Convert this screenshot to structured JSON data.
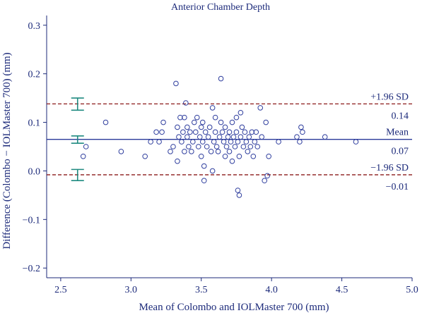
{
  "chart_data": {
    "type": "scatter",
    "title": "Anterior Chamber Depth",
    "xlabel": "Mean of Colombo and IOLMaster 700 (mm)",
    "ylabel": "Difference (Colombo − IOLMaster 700) (mm)",
    "xlim": [
      2.4,
      5.0
    ],
    "ylim": [
      -0.22,
      0.32
    ],
    "xticks": [
      "2.5",
      "3.0",
      "3.5",
      "4.0",
      "4.5",
      "5.0"
    ],
    "yticks": [
      "−0.2",
      "−0.1",
      "0.0",
      "0.1",
      "0.2",
      "0.3"
    ],
    "xtick_values": [
      2.5,
      3.0,
      3.5,
      4.0,
      4.5,
      5.0
    ],
    "ytick_values": [
      -0.2,
      -0.1,
      0.0,
      0.1,
      0.2,
      0.3
    ],
    "grid": false,
    "colors": {
      "axis": "#1c2a7a",
      "points": "#2f3e9e",
      "mean_line": "#2a3a9a",
      "limit_lines": "#8b1a1a",
      "ci_bars": "#1f8a80"
    },
    "lines": {
      "upper_loa": {
        "label": "+1.96 SD",
        "value_text": "0.14",
        "value": 0.138
      },
      "mean": {
        "label": "Mean",
        "value_text": "0.07",
        "value": 0.065
      },
      "lower_loa": {
        "label": "−1.96 SD",
        "value_text": "−0.01",
        "value": -0.008
      }
    },
    "ci_bars": [
      {
        "center": 0.138,
        "low": 0.125,
        "high": 0.15
      },
      {
        "center": 0.065,
        "low": 0.057,
        "high": 0.072
      },
      {
        "center": -0.008,
        "low": -0.02,
        "high": 0.003
      }
    ],
    "points": [
      [
        2.66,
        0.03
      ],
      [
        2.68,
        0.05
      ],
      [
        2.82,
        0.1
      ],
      [
        2.93,
        0.04
      ],
      [
        3.1,
        0.03
      ],
      [
        3.14,
        0.06
      ],
      [
        3.18,
        0.08
      ],
      [
        3.2,
        0.06
      ],
      [
        3.22,
        0.08
      ],
      [
        3.23,
        0.1
      ],
      [
        3.28,
        0.04
      ],
      [
        3.3,
        0.05
      ],
      [
        3.32,
        0.18
      ],
      [
        3.33,
        0.09
      ],
      [
        3.33,
        0.02
      ],
      [
        3.34,
        0.07
      ],
      [
        3.35,
        0.11
      ],
      [
        3.36,
        0.06
      ],
      [
        3.37,
        0.08
      ],
      [
        3.38,
        0.04
      ],
      [
        3.38,
        0.11
      ],
      [
        3.39,
        0.14
      ],
      [
        3.4,
        0.07
      ],
      [
        3.4,
        0.09
      ],
      [
        3.41,
        0.05
      ],
      [
        3.42,
        0.08
      ],
      [
        3.43,
        0.04
      ],
      [
        3.44,
        0.06
      ],
      [
        3.45,
        0.1
      ],
      [
        3.46,
        0.08
      ],
      [
        3.47,
        0.11
      ],
      [
        3.48,
        0.05
      ],
      [
        3.49,
        0.07
      ],
      [
        3.5,
        0.09
      ],
      [
        3.5,
        0.03
      ],
      [
        3.51,
        0.1
      ],
      [
        3.51,
        0.06
      ],
      [
        3.52,
        -0.02
      ],
      [
        3.52,
        0.01
      ],
      [
        3.53,
        0.08
      ],
      [
        3.54,
        0.05
      ],
      [
        3.55,
        0.07
      ],
      [
        3.56,
        0.09
      ],
      [
        3.57,
        0.04
      ],
      [
        3.58,
        0.13
      ],
      [
        3.58,
        0.0
      ],
      [
        3.59,
        0.06
      ],
      [
        3.6,
        0.08
      ],
      [
        3.6,
        0.11
      ],
      [
        3.61,
        0.05
      ],
      [
        3.62,
        0.04
      ],
      [
        3.63,
        0.07
      ],
      [
        3.64,
        0.19
      ],
      [
        3.64,
        0.1
      ],
      [
        3.65,
        0.08
      ],
      [
        3.66,
        0.06
      ],
      [
        3.67,
        0.03
      ],
      [
        3.67,
        0.09
      ],
      [
        3.68,
        0.05
      ],
      [
        3.69,
        0.07
      ],
      [
        3.7,
        0.04
      ],
      [
        3.7,
        0.08
      ],
      [
        3.71,
        0.06
      ],
      [
        3.72,
        0.02
      ],
      [
        3.72,
        0.1
      ],
      [
        3.73,
        0.07
      ],
      [
        3.74,
        0.05
      ],
      [
        3.75,
        0.08
      ],
      [
        3.75,
        0.11
      ],
      [
        3.76,
        -0.04
      ],
      [
        3.76,
        0.06
      ],
      [
        3.77,
        0.03
      ],
      [
        3.77,
        -0.05
      ],
      [
        3.78,
        0.12
      ],
      [
        3.78,
        0.07
      ],
      [
        3.79,
        0.09
      ],
      [
        3.8,
        0.05
      ],
      [
        3.81,
        0.08
      ],
      [
        3.82,
        0.06
      ],
      [
        3.83,
        0.04
      ],
      [
        3.84,
        0.07
      ],
      [
        3.85,
        0.05
      ],
      [
        3.86,
        0.08
      ],
      [
        3.87,
        0.03
      ],
      [
        3.88,
        0.06
      ],
      [
        3.89,
        0.08
      ],
      [
        3.9,
        0.05
      ],
      [
        3.92,
        0.13
      ],
      [
        3.93,
        0.07
      ],
      [
        3.95,
        -0.02
      ],
      [
        3.96,
        0.1
      ],
      [
        3.97,
        -0.01
      ],
      [
        3.98,
        0.03
      ],
      [
        4.05,
        0.06
      ],
      [
        4.18,
        0.07
      ],
      [
        4.2,
        0.06
      ],
      [
        4.21,
        0.09
      ],
      [
        4.22,
        0.08
      ],
      [
        4.38,
        0.07
      ],
      [
        4.6,
        0.06
      ]
    ]
  }
}
